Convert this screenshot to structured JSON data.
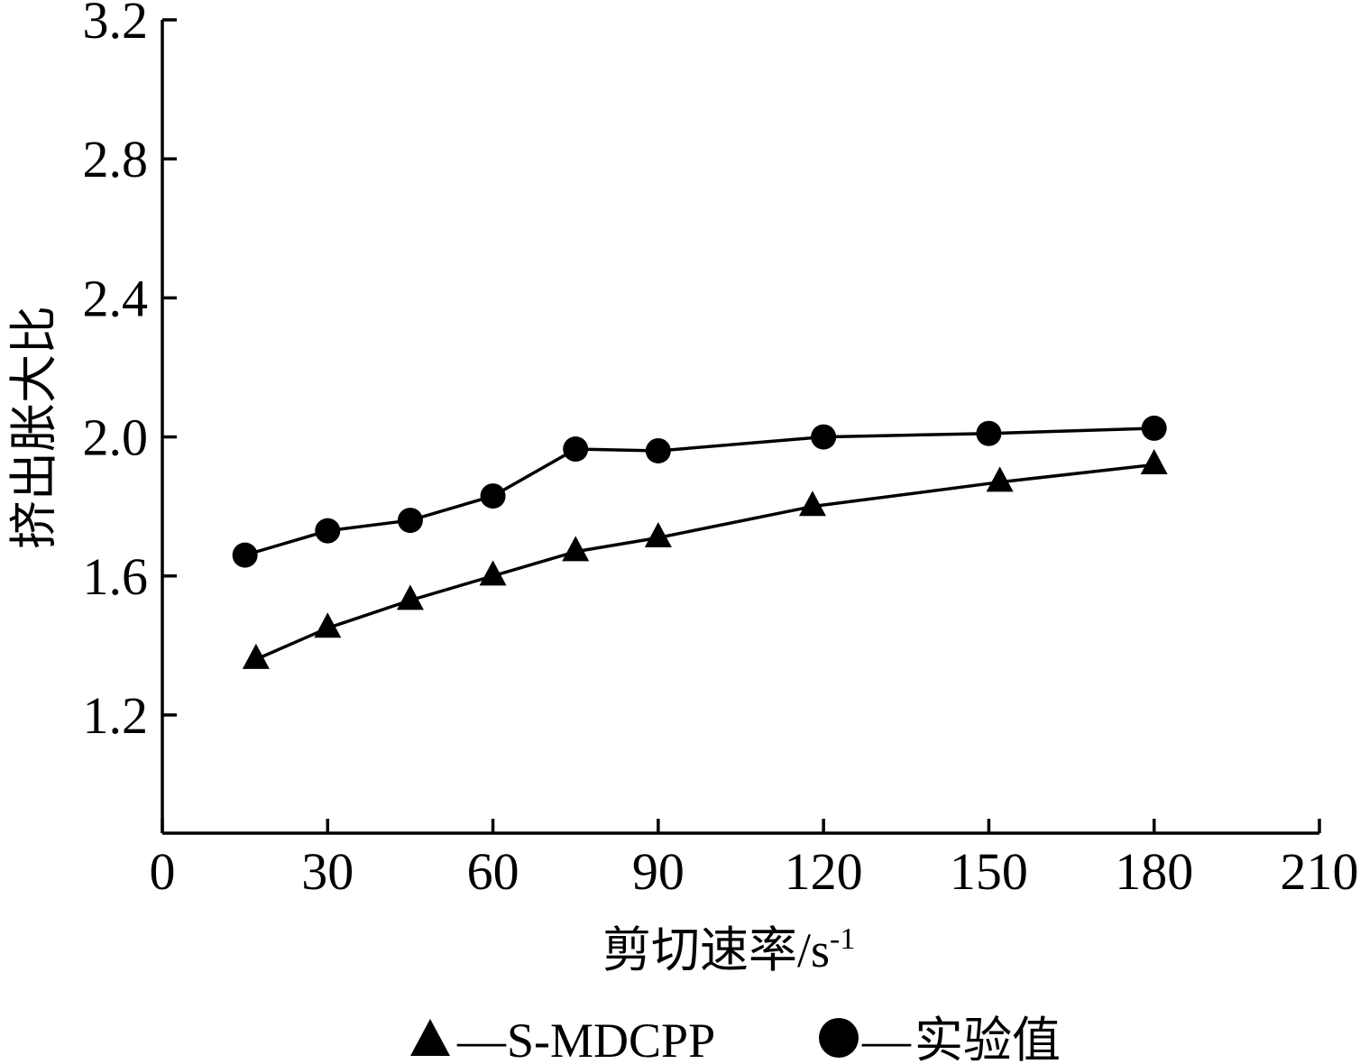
{
  "chart_data": {
    "type": "line",
    "xlabel": "剪切速率/s",
    "xlabel_superscript": "-1",
    "ylabel": "挤出胀大比",
    "xlim": [
      0,
      210
    ],
    "ylim": [
      0.86,
      3.2
    ],
    "x_ticks": [
      0,
      30,
      60,
      90,
      120,
      150,
      180,
      210
    ],
    "x_tick_labels": [
      "0",
      "30",
      "60",
      "90",
      "120",
      "150",
      "180",
      "210"
    ],
    "y_ticks": [
      1.2,
      1.6,
      2.0,
      2.4,
      2.8,
      3.2
    ],
    "y_tick_labels": [
      "1.2",
      "1.6",
      "2.0",
      "2.4",
      "2.8",
      "3.2"
    ],
    "grid": false,
    "legend_position": "bottom",
    "series": [
      {
        "name": "S-MDCPP",
        "marker": "triangle",
        "color": "#000000",
        "x": [
          17,
          30,
          45,
          60,
          75,
          90,
          118,
          152,
          180
        ],
        "y": [
          1.36,
          1.45,
          1.53,
          1.6,
          1.67,
          1.71,
          1.8,
          1.87,
          1.92
        ]
      },
      {
        "name": "实验值",
        "marker": "circle",
        "color": "#000000",
        "x": [
          15,
          30,
          45,
          60,
          75,
          90,
          120,
          150,
          180
        ],
        "y": [
          1.66,
          1.73,
          1.76,
          1.83,
          1.965,
          1.96,
          2.0,
          2.01,
          2.025
        ]
      }
    ],
    "legend": {
      "separator": "—",
      "entries": [
        "S-MDCPP",
        "实验值"
      ]
    }
  }
}
